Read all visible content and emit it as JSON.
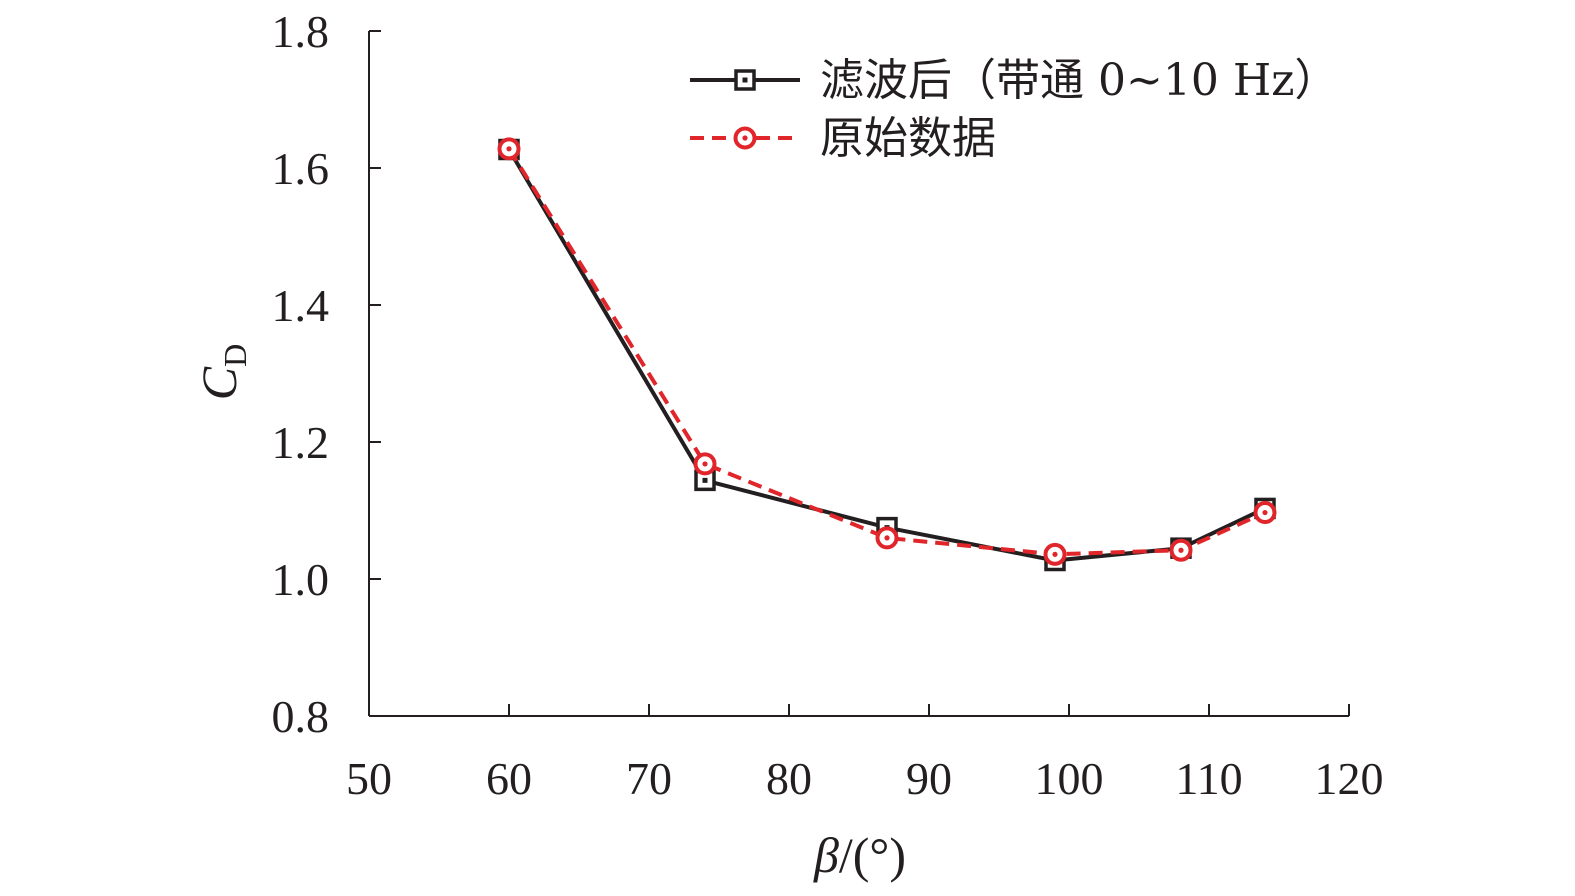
{
  "chart_data": {
    "type": "line",
    "xlabel_symbol": "β",
    "xlabel_unit": "/(°)",
    "ylabel_symbol": "C",
    "ylabel_subscript": "D",
    "xlim": [
      50,
      120
    ],
    "ylim": [
      0.8,
      1.8
    ],
    "xticks": [
      50,
      60,
      70,
      80,
      90,
      100,
      110,
      120
    ],
    "yticks": [
      "0.8",
      "1.0",
      "1.2",
      "1.4",
      "1.6",
      "1.8"
    ],
    "legend_position": "top-right",
    "series": [
      {
        "name": "滤波后（带通 0~10 Hz）",
        "color": "#231f20",
        "line": "solid",
        "marker": "square",
        "x": [
          60,
          74,
          87,
          99,
          108,
          114
        ],
        "y": [
          1.627,
          1.144,
          1.075,
          1.027,
          1.045,
          1.103
        ]
      },
      {
        "name": "原始数据",
        "color": "#e0262b",
        "line": "dashed",
        "marker": "circle",
        "x": [
          60,
          74,
          87,
          99,
          108,
          114
        ],
        "y": [
          1.628,
          1.168,
          1.06,
          1.036,
          1.042,
          1.097
        ]
      }
    ]
  }
}
